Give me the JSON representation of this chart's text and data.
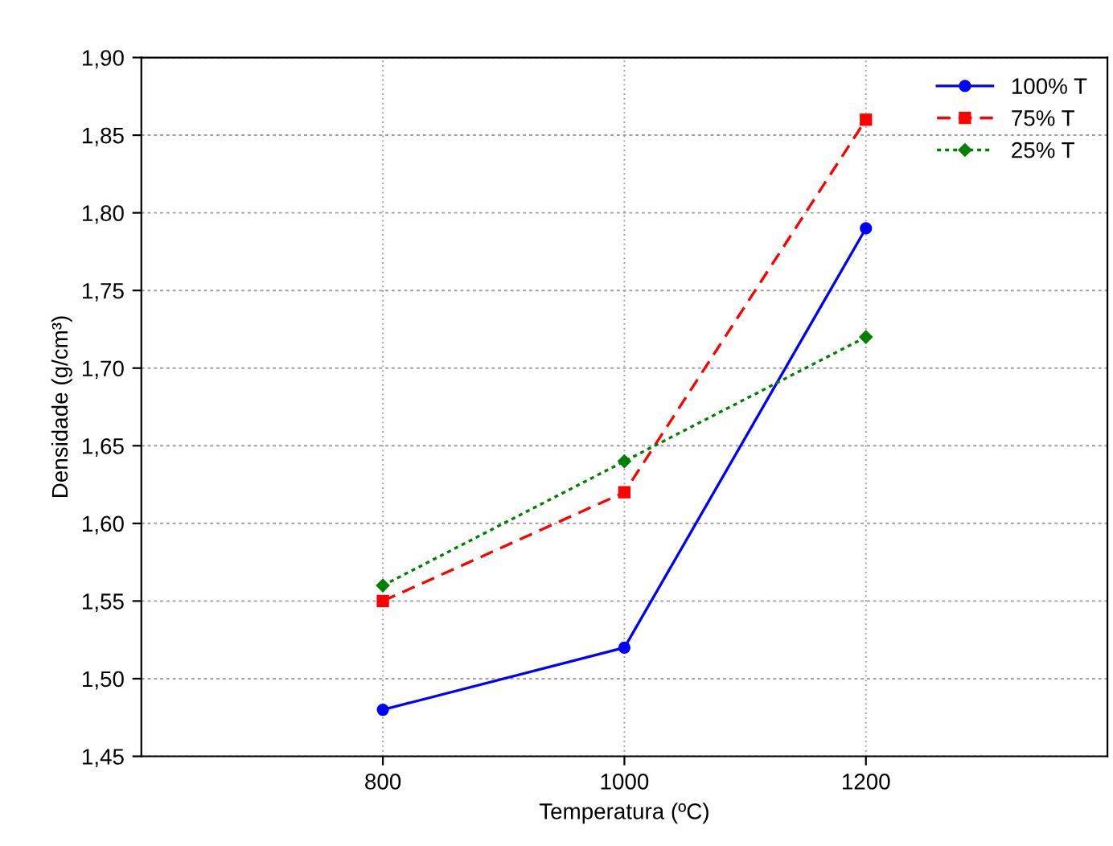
{
  "chart_data": {
    "type": "line",
    "xlabel": "Temperatura (ºC)",
    "ylabel": "Densidade (g/cm³)",
    "x": [
      800,
      1000,
      1200
    ],
    "series": [
      {
        "name": "100% T",
        "color": "#0000ff",
        "marker": "circle",
        "line_style": "solid",
        "values": [
          1.48,
          1.52,
          1.79
        ]
      },
      {
        "name": "75% T",
        "color": "#ff0000",
        "marker": "square",
        "line_style": "dashed",
        "values": [
          1.55,
          1.62,
          1.86
        ]
      },
      {
        "name": "25% T",
        "color": "#008000",
        "marker": "diamond",
        "line_style": "dotted",
        "values": [
          1.56,
          1.64,
          1.72
        ]
      }
    ],
    "xlim": [
      600,
      1400
    ],
    "xticks": [
      800,
      1000,
      1200
    ],
    "ylim": [
      1.45,
      1.9
    ],
    "yticks": [
      {
        "value": 1.45,
        "label": "1,45"
      },
      {
        "value": 1.5,
        "label": "1,50"
      },
      {
        "value": 1.55,
        "label": "1,55"
      },
      {
        "value": 1.6,
        "label": "1,60"
      },
      {
        "value": 1.65,
        "label": "1,65"
      },
      {
        "value": 1.7,
        "label": "1,70"
      },
      {
        "value": 1.75,
        "label": "1,75"
      },
      {
        "value": 1.8,
        "label": "1,80"
      },
      {
        "value": 1.85,
        "label": "1,85"
      },
      {
        "value": 1.9,
        "label": "1,90"
      }
    ],
    "grid": true,
    "legend": "top right"
  }
}
